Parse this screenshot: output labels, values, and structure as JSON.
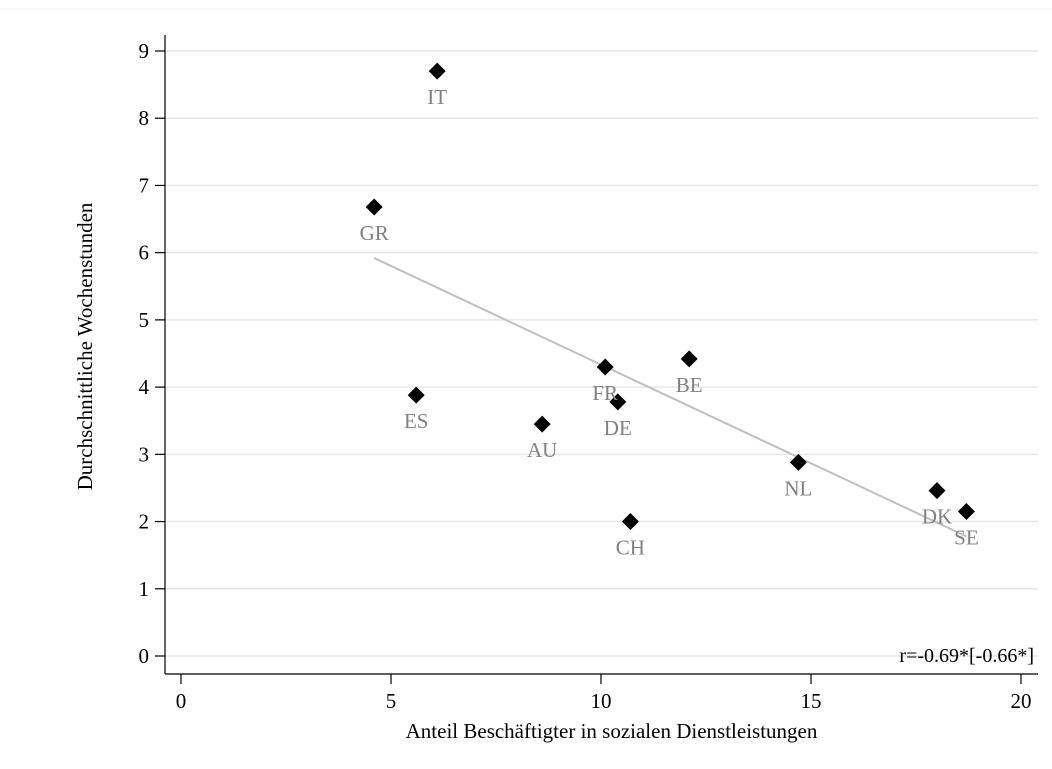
{
  "chart_data": {
    "type": "scatter",
    "title": "",
    "xlabel": "Anteil Beschäftigter in sozialen Dienstleistungen",
    "ylabel": "Durchschnittliche Wochenstunden",
    "xlim": [
      0,
      20
    ],
    "ylim": [
      0,
      9
    ],
    "x_ticks": [
      0,
      5,
      10,
      15,
      20
    ],
    "y_ticks": [
      0,
      1,
      2,
      3,
      4,
      5,
      6,
      7,
      8,
      9
    ],
    "grid": "horizontal",
    "points": [
      {
        "label": "IT",
        "x": 6.1,
        "y": 8.7
      },
      {
        "label": "GR",
        "x": 4.6,
        "y": 6.68
      },
      {
        "label": "ES",
        "x": 5.6,
        "y": 3.88
      },
      {
        "label": "AU",
        "x": 8.6,
        "y": 3.45
      },
      {
        "label": "FR",
        "x": 10.1,
        "y": 4.3
      },
      {
        "label": "DE",
        "x": 10.4,
        "y": 3.78
      },
      {
        "label": "BE",
        "x": 12.1,
        "y": 4.42
      },
      {
        "label": "CH",
        "x": 10.7,
        "y": 2.0
      },
      {
        "label": "NL",
        "x": 14.7,
        "y": 2.88
      },
      {
        "label": "DK",
        "x": 18.0,
        "y": 2.46
      },
      {
        "label": "SE",
        "x": 18.7,
        "y": 2.15
      }
    ],
    "fit_line": {
      "x": [
        4.6,
        18.7
      ],
      "y": [
        5.92,
        1.78
      ]
    },
    "annotation": "r=-0.69*[-0.66*]",
    "colors": {
      "marker": "#000000",
      "point_label": "#808080",
      "fit_line": "#bfbfbf",
      "grid": "#e6e6e6"
    }
  }
}
